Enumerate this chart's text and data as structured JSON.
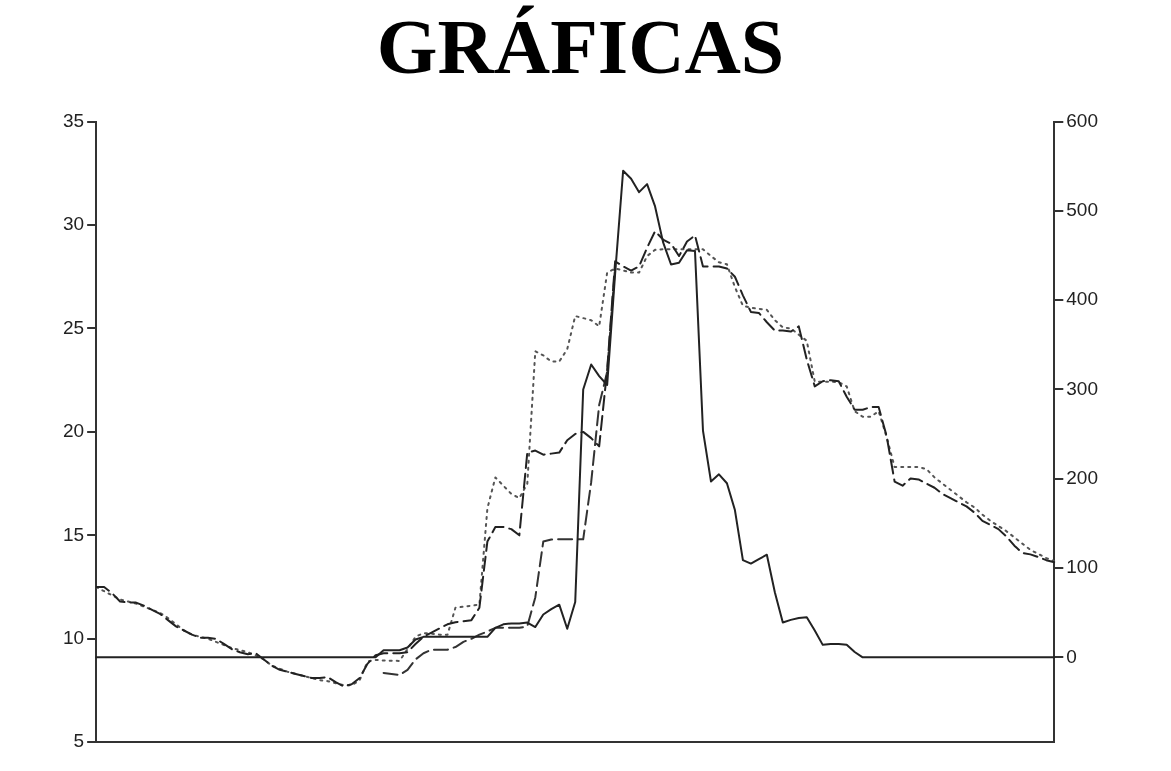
{
  "chart_data": {
    "type": "line",
    "title": "GRÁFICAS",
    "legend": false,
    "grid": false,
    "marker": "none",
    "categories": [
      null,
      null,
      null,
      null,
      null,
      null,
      null,
      null,
      null,
      null,
      null,
      null,
      null,
      null,
      null,
      null,
      null,
      null,
      null,
      null,
      null,
      null,
      null,
      null,
      null,
      null,
      null,
      null,
      null,
      null,
      null,
      null,
      null,
      null,
      null,
      null,
      null,
      null,
      null,
      null,
      null,
      null,
      null,
      null,
      null,
      null,
      null,
      null,
      null,
      null,
      null,
      null,
      null,
      null,
      null,
      null,
      null,
      null,
      null,
      null,
      null,
      null,
      null,
      null,
      null,
      null,
      null,
      null,
      null,
      null,
      null,
      null,
      null,
      null,
      null,
      null,
      null,
      null,
      null,
      null,
      null,
      null,
      null,
      null,
      null,
      null,
      null,
      null,
      null,
      null,
      null,
      null,
      null,
      null,
      null,
      null,
      null,
      null,
      null,
      null,
      null,
      null,
      null,
      null,
      null,
      null,
      null,
      null,
      null,
      null,
      null,
      null,
      null,
      null,
      null,
      null,
      null,
      null,
      null,
      null,
      null
    ],
    "ylim": [
      5,
      35
    ],
    "yticks": [
      5,
      10,
      15,
      20,
      25,
      30,
      35
    ],
    "y2lim": [
      -95,
      600
    ],
    "y2ticks": [
      0,
      100,
      200,
      300,
      400,
      500,
      600
    ],
    "series": [
      {
        "color": "#222222",
        "line_style": "solid",
        "axis": "y2",
        "values": [
          0,
          0,
          0,
          0,
          0,
          0,
          0,
          0,
          0,
          0,
          0,
          0,
          0,
          0,
          0,
          0,
          0,
          0,
          0,
          0,
          0,
          0,
          0,
          0,
          0,
          0,
          0,
          0,
          0,
          0,
          0,
          0,
          0,
          0,
          0,
          0,
          8,
          8,
          8,
          11,
          20,
          23,
          23,
          23,
          23,
          23,
          23,
          23,
          23,
          23,
          33,
          37,
          38,
          38,
          39,
          34,
          48,
          54,
          59,
          32,
          62,
          300,
          328,
          315,
          305,
          430,
          545,
          536,
          521,
          530,
          505,
          465,
          440,
          442,
          456,
          455,
          254,
          197,
          205,
          195,
          165,
          109,
          105,
          110,
          115,
          73,
          39,
          42,
          44,
          45,
          30,
          14,
          15,
          15,
          14,
          6,
          0,
          0,
          0,
          0,
          0,
          0,
          0,
          0,
          0,
          0,
          0,
          0,
          0,
          0,
          0,
          0,
          0,
          0,
          0,
          0,
          0,
          0,
          0,
          0,
          0
        ]
      },
      {
        "color": "#222222",
        "line_style": "dashed",
        "axis": "y",
        "values": [
          12.5,
          12.5,
          12.2,
          11.8,
          11.75,
          11.75,
          11.6,
          11.4,
          11.2,
          10.9,
          10.6,
          10.4,
          10.2,
          10.05,
          10.05,
          10.0,
          9.75,
          9.5,
          9.35,
          9.25,
          9.3,
          9.0,
          8.7,
          8.5,
          8.4,
          8.3,
          8.2,
          8.1,
          8.1,
          8.15,
          7.9,
          7.7,
          7.8,
          8.1,
          8.8,
          9.2,
          9.3,
          9.3,
          9.3,
          9.35,
          9.75,
          10.1,
          10.3,
          10.5,
          10.7,
          10.8,
          10.85,
          10.9,
          11.5,
          14.7,
          15.4,
          15.4,
          15.3,
          15.0,
          19.0,
          19.1,
          18.9,
          18.95,
          19.0,
          19.6,
          19.9,
          20.0,
          19.7,
          19.3,
          23.0,
          28.25,
          28.0,
          27.8,
          28.0,
          28.9,
          29.7,
          29.3,
          29.1,
          28.5,
          29.2,
          29.5,
          28.0,
          28.0,
          28.0,
          27.9,
          27.5,
          26.6,
          25.8,
          25.75,
          25.3,
          24.9,
          24.9,
          24.85,
          25.1,
          23.5,
          22.2,
          22.45,
          22.5,
          22.45,
          21.7,
          21.07,
          21.07,
          21.2,
          21.2,
          19.8,
          17.6,
          17.4,
          17.75,
          17.7,
          17.5,
          17.3,
          17.0,
          16.8,
          16.6,
          16.4,
          16.1,
          15.7,
          15.5,
          15.3,
          14.95,
          14.5,
          14.15,
          14.08,
          13.95,
          13.8,
          13.7
        ]
      },
      {
        "color": "#555555",
        "line_style": "dotted",
        "axis": "y",
        "values": [
          12.5,
          12.3,
          12.1,
          11.9,
          11.8,
          11.7,
          11.55,
          11.4,
          11.25,
          11.0,
          10.7,
          10.4,
          10.2,
          10.1,
          10.0,
          9.85,
          9.7,
          9.55,
          9.45,
          9.35,
          9.2,
          9.0,
          8.7,
          8.55,
          8.4,
          8.3,
          8.2,
          8.1,
          8.0,
          7.95,
          7.85,
          7.75,
          7.75,
          8.0,
          8.9,
          8.98,
          8.95,
          8.94,
          8.93,
          9.5,
          10.1,
          10.27,
          10.25,
          10.2,
          10.19,
          11.5,
          11.55,
          11.6,
          11.65,
          16.3,
          17.8,
          17.4,
          17.0,
          16.8,
          17.5,
          23.9,
          23.7,
          23.4,
          23.4,
          24.0,
          25.6,
          25.5,
          25.4,
          25.1,
          27.7,
          27.9,
          27.8,
          27.7,
          27.7,
          28.5,
          28.8,
          28.83,
          28.83,
          28.83,
          28.83,
          28.83,
          28.83,
          28.5,
          28.2,
          28.1,
          27.0,
          26.1,
          26.0,
          25.95,
          25.9,
          25.4,
          25.05,
          25.0,
          24.7,
          24.4,
          22.43,
          22.43,
          22.43,
          22.4,
          22.2,
          21.0,
          20.73,
          20.73,
          21.0,
          19.76,
          18.3,
          18.3,
          18.3,
          18.3,
          18.2,
          17.8,
          17.5,
          17.2,
          16.9,
          16.6,
          16.35,
          16.0,
          15.7,
          15.45,
          15.2,
          14.9,
          14.6,
          14.3,
          14.1,
          13.9,
          13.75
        ]
      },
      {
        "color": "#333333",
        "line_style": "dashed",
        "axis": "y",
        "values": [
          null,
          null,
          null,
          null,
          null,
          null,
          null,
          null,
          null,
          null,
          null,
          null,
          null,
          null,
          null,
          null,
          null,
          null,
          null,
          null,
          null,
          null,
          null,
          null,
          null,
          null,
          null,
          null,
          null,
          null,
          null,
          null,
          null,
          null,
          null,
          null,
          8.35,
          8.3,
          8.25,
          8.5,
          9.0,
          9.3,
          9.47,
          9.47,
          9.47,
          9.6,
          9.85,
          10.0,
          10.2,
          10.35,
          10.53,
          10.53,
          10.53,
          10.53,
          10.6,
          12.0,
          14.7,
          14.8,
          14.81,
          14.81,
          14.81,
          14.81,
          17.57,
          21.3,
          22.9,
          28.0,
          null,
          null,
          null,
          null,
          null,
          null,
          null,
          null,
          null,
          null,
          null,
          null,
          null,
          null,
          null,
          null,
          null,
          null,
          null,
          null,
          null,
          null,
          null,
          null,
          null,
          null,
          null,
          null,
          null,
          null,
          null,
          null,
          null,
          null,
          null,
          null,
          null,
          null,
          null,
          null,
          null,
          null,
          null,
          null,
          null,
          null,
          null,
          null,
          null,
          null,
          null,
          null,
          null,
          null,
          null
        ]
      }
    ]
  }
}
